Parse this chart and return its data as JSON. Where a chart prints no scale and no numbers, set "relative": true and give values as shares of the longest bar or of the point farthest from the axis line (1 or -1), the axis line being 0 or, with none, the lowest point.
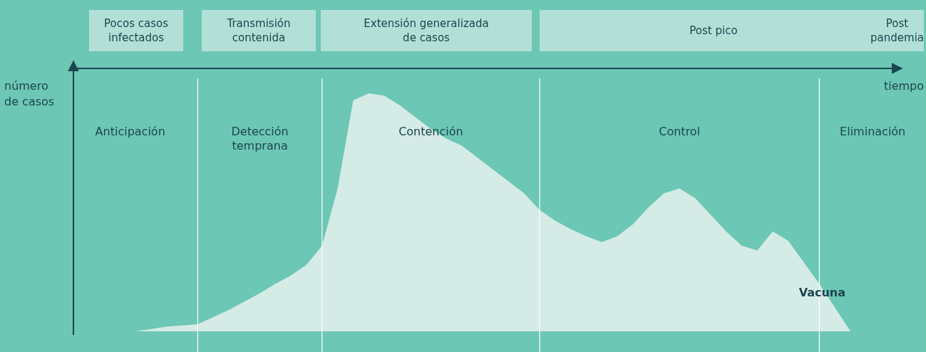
{
  "chart_data": {
    "type": "area",
    "relative": true,
    "xlabel": "tiempo",
    "ylabel": "número de casos",
    "categories": [
      null,
      null,
      null,
      null,
      null,
      null,
      null,
      null,
      null,
      null,
      null,
      null,
      null,
      null,
      null,
      null,
      null,
      null,
      null,
      null,
      null,
      null,
      null,
      null,
      null,
      null,
      null,
      null,
      null,
      null,
      null,
      null,
      null,
      null,
      null,
      null,
      null,
      null,
      null,
      null,
      null,
      null,
      null,
      null,
      null,
      null,
      null,
      null,
      null,
      null,
      null,
      null,
      null,
      null
    ],
    "series": [
      {
        "color": "#d5ebe6",
        "values": [
          null,
          null,
          null,
          null,
          0,
          0.01,
          0.02,
          0.025,
          0.03,
          0.06,
          0.09,
          0.125,
          0.16,
          0.2,
          0.235,
          0.28,
          0.36,
          0.6,
          0.97,
          1,
          0.99,
          0.95,
          0.9,
          0.85,
          0.81,
          0.78,
          0.73,
          0.68,
          0.63,
          0.58,
          0.51,
          0.465,
          0.43,
          0.4,
          0.375,
          0.4,
          0.45,
          0.52,
          0.58,
          0.6,
          0.56,
          0.49,
          0.42,
          0.36,
          0.34,
          0.42,
          0.38,
          0.29,
          0.2,
          0.1,
          0,
          null,
          null,
          null
        ]
      }
    ],
    "annotations": [
      "Pocos casos\ninfectados",
      "Transmisión\ncontenida",
      "Extensión generalizada\nde casos",
      "Post pico",
      "Post\npandemia",
      "Anticipación",
      "Detección\ntemprana",
      "Contención",
      "Control",
      "Eliminación",
      "Vacuna"
    ]
  }
}
